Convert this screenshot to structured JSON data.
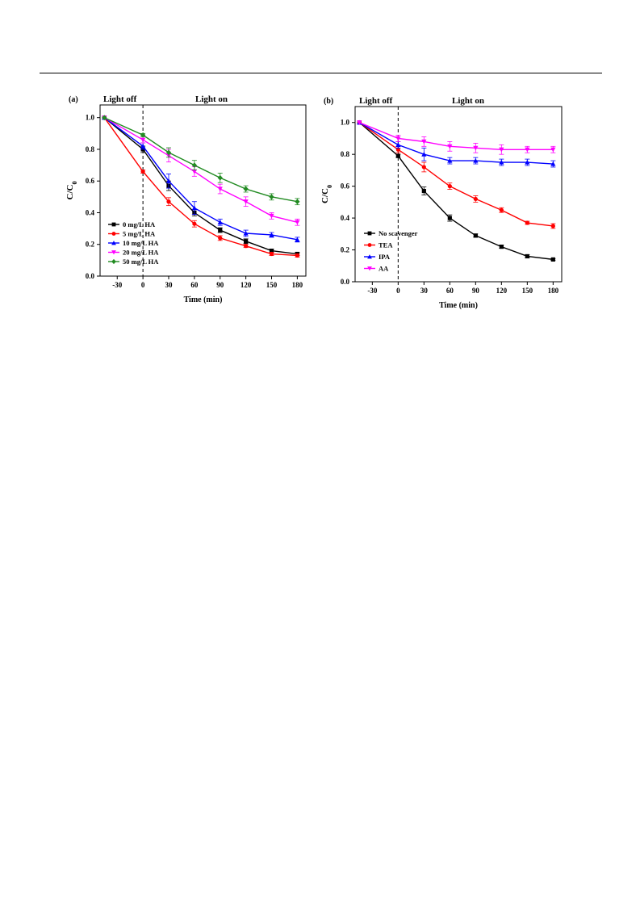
{
  "chart_data": [
    {
      "type": "line",
      "panel_label": "(a)",
      "region_labels": [
        "Light off",
        "Light on"
      ],
      "xlabel": "Time (min)",
      "ylabel": "C/C0",
      "x": [
        -45,
        0,
        30,
        60,
        90,
        120,
        150,
        180
      ],
      "xticks": [
        -30,
        0,
        30,
        60,
        90,
        120,
        150,
        180
      ],
      "yticks": [
        "0.0",
        "0.2",
        "0.4",
        "0.6",
        "0.8",
        "1.0"
      ],
      "xlim": [
        -50,
        190
      ],
      "ylim": [
        0,
        1.08
      ],
      "grid": false,
      "legend_position": "bottom-left",
      "series": [
        {
          "name": "0 mg/L HA",
          "color": "#000000",
          "marker": "square",
          "values": [
            1.0,
            0.8,
            0.57,
            0.4,
            0.29,
            0.22,
            0.16,
            0.14
          ],
          "errors": [
            0,
            0.02,
            0.03,
            0.02,
            0.015,
            0.015,
            0.01,
            0.01
          ]
        },
        {
          "name": "5 mg/L HA",
          "color": "#ff0000",
          "marker": "circle",
          "values": [
            1.0,
            0.66,
            0.47,
            0.33,
            0.24,
            0.19,
            0.14,
            0.13
          ],
          "errors": [
            0,
            0.01,
            0.025,
            0.02,
            0.015,
            0.01,
            0.01,
            0.01
          ]
        },
        {
          "name": "10 mg/L HA",
          "color": "#0000ff",
          "marker": "triangle-up",
          "values": [
            1.0,
            0.82,
            0.6,
            0.43,
            0.34,
            0.27,
            0.26,
            0.23
          ],
          "errors": [
            0,
            0.02,
            0.045,
            0.04,
            0.02,
            0.02,
            0.015,
            0.015
          ]
        },
        {
          "name": "20 mg/L HA",
          "color": "#ff00ff",
          "marker": "triangle-down",
          "values": [
            1.0,
            0.86,
            0.76,
            0.66,
            0.55,
            0.47,
            0.38,
            0.34
          ],
          "errors": [
            0,
            0.02,
            0.04,
            0.03,
            0.03,
            0.03,
            0.02,
            0.02
          ]
        },
        {
          "name": "50 mg/L HA",
          "color": "#228b22",
          "marker": "diamond",
          "values": [
            1.0,
            0.89,
            0.78,
            0.7,
            0.62,
            0.55,
            0.5,
            0.47
          ],
          "errors": [
            0,
            0.01,
            0.03,
            0.03,
            0.03,
            0.02,
            0.02,
            0.02
          ]
        }
      ]
    },
    {
      "type": "line",
      "panel_label": "(b)",
      "region_labels": [
        "Light off",
        "Light on"
      ],
      "xlabel": "Time (min)",
      "ylabel": "C/C0",
      "x": [
        -45,
        0,
        30,
        60,
        90,
        120,
        150,
        180
      ],
      "xticks": [
        -30,
        0,
        30,
        60,
        90,
        120,
        150,
        180
      ],
      "yticks": [
        "0.0",
        "0.2",
        "0.4",
        "0.6",
        "0.8",
        "1.0"
      ],
      "xlim": [
        -50,
        190
      ],
      "ylim": [
        0,
        1.1
      ],
      "grid": false,
      "legend_position": "bottom-left",
      "series": [
        {
          "name": "No scavenger",
          "color": "#000000",
          "marker": "square",
          "values": [
            1.0,
            0.79,
            0.57,
            0.4,
            0.29,
            0.22,
            0.16,
            0.14
          ],
          "errors": [
            0,
            0.01,
            0.025,
            0.02,
            0.01,
            0.01,
            0.01,
            0.005
          ]
        },
        {
          "name": "TEA",
          "color": "#ff0000",
          "marker": "circle",
          "values": [
            1.0,
            0.83,
            0.72,
            0.6,
            0.52,
            0.45,
            0.37,
            0.35
          ],
          "errors": [
            0,
            0.02,
            0.03,
            0.02,
            0.02,
            0.015,
            0.01,
            0.015
          ]
        },
        {
          "name": "IPA",
          "color": "#0000ff",
          "marker": "triangle-up",
          "values": [
            1.0,
            0.86,
            0.8,
            0.76,
            0.76,
            0.75,
            0.75,
            0.74
          ],
          "errors": [
            0,
            0.02,
            0.04,
            0.02,
            0.02,
            0.02,
            0.02,
            0.02
          ]
        },
        {
          "name": "AA",
          "color": "#ff00ff",
          "marker": "triangle-down",
          "values": [
            1.0,
            0.9,
            0.88,
            0.85,
            0.84,
            0.83,
            0.83,
            0.83
          ],
          "errors": [
            0,
            0.02,
            0.03,
            0.03,
            0.03,
            0.03,
            0.02,
            0.02
          ]
        }
      ]
    }
  ]
}
